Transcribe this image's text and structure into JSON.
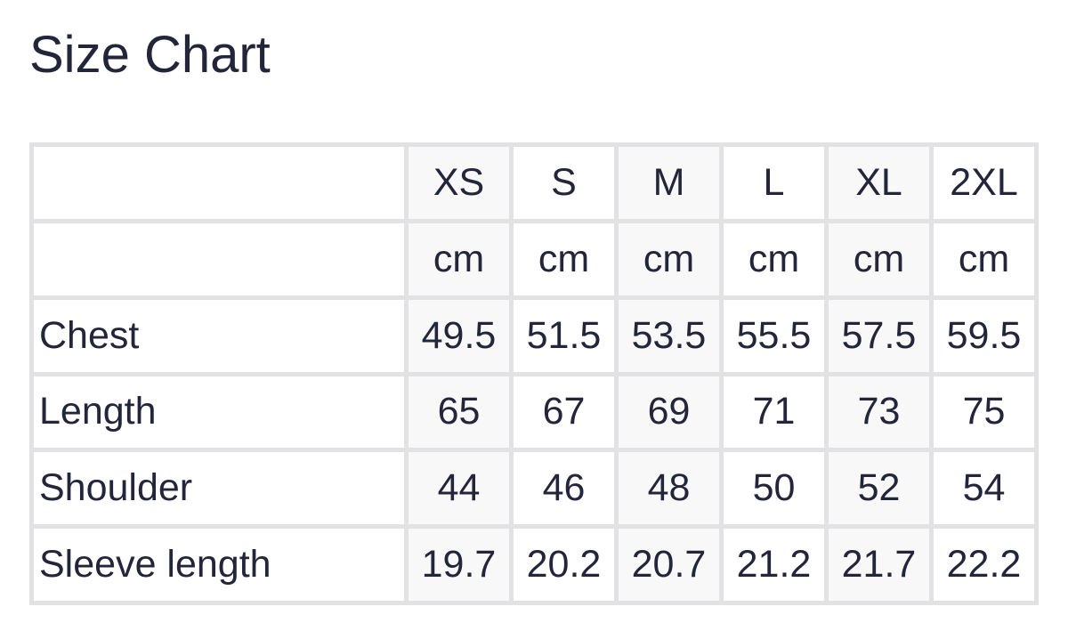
{
  "title": "Size Chart",
  "table": {
    "sizes": [
      "XS",
      "S",
      "M",
      "L",
      "XL",
      "2XL"
    ],
    "units": [
      "cm",
      "cm",
      "cm",
      "cm",
      "cm",
      "cm"
    ],
    "rows": [
      {
        "label": "Chest",
        "values": [
          "49.5",
          "51.5",
          "53.5",
          "55.5",
          "57.5",
          "59.5"
        ]
      },
      {
        "label": "Length",
        "values": [
          "65",
          "67",
          "69",
          "71",
          "73",
          "75"
        ]
      },
      {
        "label": "Shoulder",
        "values": [
          "44",
          "46",
          "48",
          "50",
          "52",
          "54"
        ]
      },
      {
        "label": "Sleeve length",
        "values": [
          "19.7",
          "20.2",
          "20.7",
          "21.2",
          "21.7",
          "22.2"
        ]
      }
    ]
  },
  "colors": {
    "border": "#e2e2e4",
    "alt_column": "#f8f8f8",
    "text": "#23263a"
  }
}
